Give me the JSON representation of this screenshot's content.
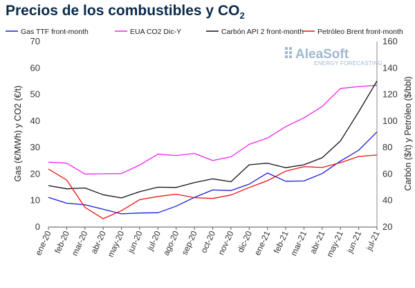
{
  "page": {
    "title_main": "Precios de los combustibles y CO",
    "title_sub": "2"
  },
  "watermark": {
    "brand": "AleaSoft",
    "tagline": "ENERGY FORECASTING"
  },
  "chart_data": {
    "type": "line",
    "categories": [
      "ene-20",
      "feb-20",
      "mar-20",
      "abr-20",
      "may-20",
      "jun-20",
      "jul-20",
      "ago-20",
      "sep-20",
      "oct-20",
      "nov-20",
      "dic-20",
      "ene-21",
      "feb-21",
      "mar-21",
      "abr-21",
      "may-21",
      "jun-21",
      "jul-21"
    ],
    "ylabel_left": "Gas (€/MWh) y CO2 (€/t)",
    "ylabel_right": "Carbón ($/t) y Petróleo ($/bbl)",
    "ylim_left": [
      0,
      70
    ],
    "yticks_left": [
      0,
      10,
      20,
      30,
      40,
      50,
      60,
      70
    ],
    "ylim_right": [
      20,
      160
    ],
    "yticks_right": [
      20,
      40,
      60,
      80,
      100,
      120,
      140,
      160
    ],
    "grid": false,
    "legend_position": "top",
    "series": [
      {
        "name": "Gas TTF front-month",
        "axis": "left",
        "color": "#1a1ad6",
        "values": [
          11.2,
          9.0,
          8.4,
          6.7,
          5.0,
          5.3,
          5.4,
          7.9,
          11.2,
          14.0,
          13.8,
          16.2,
          20.4,
          17.3,
          17.4,
          20.2,
          24.9,
          29.0,
          35.9
        ]
      },
      {
        "name": "EUA CO2 Dic-Y",
        "axis": "left",
        "color": "#ee22ee",
        "values": [
          24.5,
          24.1,
          20.0,
          20.1,
          20.2,
          23.4,
          27.5,
          27.0,
          27.8,
          25.1,
          26.5,
          31.2,
          33.6,
          37.9,
          41.2,
          45.5,
          52.3,
          53.0,
          53.5
        ]
      },
      {
        "name": "Carbón API 2 front-month",
        "axis": "right",
        "color": "#111111",
        "values": [
          51.3,
          48.9,
          49.5,
          44.4,
          42.0,
          46.7,
          50.1,
          49.9,
          53.6,
          56.4,
          54.2,
          67.0,
          68.2,
          64.8,
          67.0,
          72.3,
          85.0,
          107.0,
          130.2
        ]
      },
      {
        "name": "Petróleo Brent front-month",
        "axis": "right",
        "color": "#ee1111",
        "values": [
          63.8,
          55.5,
          34.9,
          26.3,
          32.4,
          40.7,
          43.1,
          44.8,
          42.2,
          41.6,
          44.2,
          49.9,
          55.0,
          62.2,
          65.6,
          65.0,
          68.6,
          73.3,
          74.4
        ]
      }
    ]
  }
}
